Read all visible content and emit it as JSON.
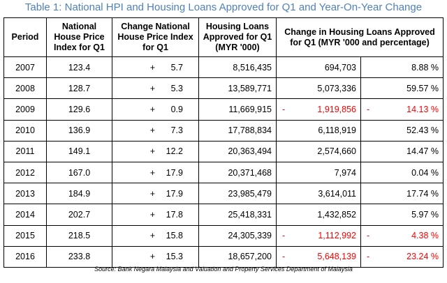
{
  "title": "Table 1: National HPI and Housing Loans Approved for Q1 and Year-On-Year Change",
  "headers": {
    "period": "Period",
    "hpi": "National House Price Index for Q1",
    "hpi_change": "Change National House Price Index for Q1",
    "loans": "Housing Loans Approved for Q1 (MYR '000)",
    "loans_change": "Change in Housing Loans Approved for Q1 (MYR '000 and percentage)"
  },
  "rows": [
    {
      "period": "2007",
      "hpi": "123.4",
      "hpi_sign": "+",
      "hpi_change": "5.7",
      "loans": "8,516,435",
      "loans_change": "694,703",
      "pct": "8.88 %",
      "negative": false
    },
    {
      "period": "2008",
      "hpi": "128.7",
      "hpi_sign": "+",
      "hpi_change": "5.3",
      "loans": "13,589,771",
      "loans_change": "5,073,336",
      "pct": "59.57 %",
      "negative": false
    },
    {
      "period": "2009",
      "hpi": "129.6",
      "hpi_sign": "+",
      "hpi_change": "0.9",
      "loans": "11,669,915",
      "loans_change": "1,919,856",
      "pct": "14.13 %",
      "negative": true
    },
    {
      "period": "2010",
      "hpi": "136.9",
      "hpi_sign": "+",
      "hpi_change": "7.3",
      "loans": "17,788,834",
      "loans_change": "6,118,919",
      "pct": "52.43 %",
      "negative": false
    },
    {
      "period": "2011",
      "hpi": "149.1",
      "hpi_sign": "+",
      "hpi_change": "12.2",
      "loans": "20,363,494",
      "loans_change": "2,574,660",
      "pct": "14.47 %",
      "negative": false
    },
    {
      "period": "2012",
      "hpi": "167.0",
      "hpi_sign": "+",
      "hpi_change": "17.9",
      "loans": "20,371,468",
      "loans_change": "7,974",
      "pct": "0.04 %",
      "negative": false
    },
    {
      "period": "2013",
      "hpi": "184.9",
      "hpi_sign": "+",
      "hpi_change": "17.9",
      "loans": "23,985,479",
      "loans_change": "3,614,011",
      "pct": "17.74 %",
      "negative": false
    },
    {
      "period": "2014",
      "hpi": "202.7",
      "hpi_sign": "+",
      "hpi_change": "17.8",
      "loans": "25,418,331",
      "loans_change": "1,432,852",
      "pct": "5.97 %",
      "negative": false
    },
    {
      "period": "2015",
      "hpi": "218.5",
      "hpi_sign": "+",
      "hpi_change": "15.8",
      "loans": "24,305,339",
      "loans_change": "1,112,992",
      "pct": "4.38 %",
      "negative": true
    },
    {
      "period": "2016",
      "hpi": "233.8",
      "hpi_sign": "+",
      "hpi_change": "15.3",
      "loans": "18,657,200",
      "loans_change": "5,648,139",
      "pct": "23.24 %",
      "negative": true
    }
  ],
  "negative_sign": "-",
  "negative_color": "#ff0000",
  "title_color": "#4f81bd",
  "source": "Source: Bank Negara Malaysia and Valuation and Property Services Department of Malaysia"
}
